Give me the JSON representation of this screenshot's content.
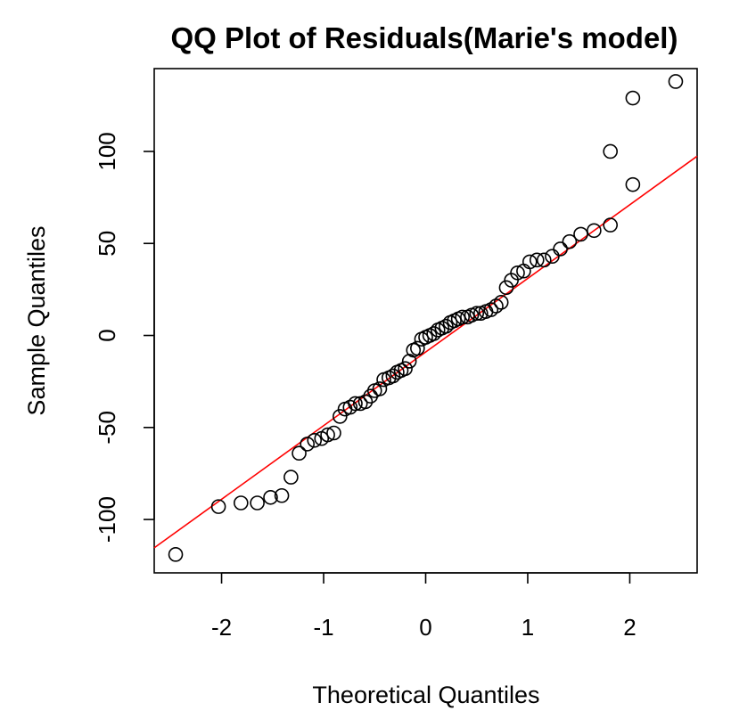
{
  "chart_data": {
    "type": "scatter",
    "title": "QQ Plot of Residuals(Marie's model)",
    "xlabel": "Theoretical Quantiles",
    "ylabel": "Sample Quantiles",
    "xlim": [
      -2.66,
      2.66
    ],
    "ylim": [
      -129,
      145
    ],
    "x_ticks": [
      -2,
      -1,
      0,
      1,
      2
    ],
    "x_tick_labels": [
      "-2",
      "-1",
      "0",
      "1",
      "2"
    ],
    "y_ticks": [
      -100,
      -50,
      0,
      50,
      100
    ],
    "y_tick_labels": [
      "-100",
      "-50",
      "0",
      "50",
      "100"
    ],
    "grid": false,
    "marker": "open-circle",
    "point_color": "#000000",
    "reference_line": {
      "color": "#ff0000",
      "slope": 40.0,
      "intercept": -9.0
    },
    "points": [
      {
        "x": -2.45,
        "y": -119
      },
      {
        "x": -2.03,
        "y": -93
      },
      {
        "x": -1.81,
        "y": -91
      },
      {
        "x": -1.65,
        "y": -91
      },
      {
        "x": -1.52,
        "y": -88
      },
      {
        "x": -1.41,
        "y": -87
      },
      {
        "x": -1.32,
        "y": -77
      },
      {
        "x": -1.24,
        "y": -64
      },
      {
        "x": -1.16,
        "y": -59
      },
      {
        "x": -1.09,
        "y": -57
      },
      {
        "x": -1.02,
        "y": -56
      },
      {
        "x": -0.96,
        "y": -54
      },
      {
        "x": -0.9,
        "y": -53
      },
      {
        "x": -0.84,
        "y": -44
      },
      {
        "x": -0.79,
        "y": -40
      },
      {
        "x": -0.74,
        "y": -39
      },
      {
        "x": -0.69,
        "y": -37
      },
      {
        "x": -0.64,
        "y": -37
      },
      {
        "x": -0.59,
        "y": -36
      },
      {
        "x": -0.54,
        "y": -33
      },
      {
        "x": -0.5,
        "y": -30
      },
      {
        "x": -0.45,
        "y": -29
      },
      {
        "x": -0.41,
        "y": -24
      },
      {
        "x": -0.36,
        "y": -23
      },
      {
        "x": -0.32,
        "y": -22
      },
      {
        "x": -0.28,
        "y": -20
      },
      {
        "x": -0.24,
        "y": -19
      },
      {
        "x": -0.2,
        "y": -18
      },
      {
        "x": -0.16,
        "y": -14
      },
      {
        "x": -0.12,
        "y": -8
      },
      {
        "x": -0.08,
        "y": -7
      },
      {
        "x": -0.04,
        "y": -2
      },
      {
        "x": 0.0,
        "y": -1
      },
      {
        "x": 0.04,
        "y": 0
      },
      {
        "x": 0.08,
        "y": 1
      },
      {
        "x": 0.12,
        "y": 3
      },
      {
        "x": 0.16,
        "y": 4
      },
      {
        "x": 0.2,
        "y": 5
      },
      {
        "x": 0.24,
        "y": 7
      },
      {
        "x": 0.28,
        "y": 8
      },
      {
        "x": 0.32,
        "y": 9
      },
      {
        "x": 0.36,
        "y": 10
      },
      {
        "x": 0.41,
        "y": 10
      },
      {
        "x": 0.45,
        "y": 11
      },
      {
        "x": 0.5,
        "y": 12
      },
      {
        "x": 0.54,
        "y": 12
      },
      {
        "x": 0.59,
        "y": 13
      },
      {
        "x": 0.64,
        "y": 14
      },
      {
        "x": 0.69,
        "y": 16
      },
      {
        "x": 0.74,
        "y": 18
      },
      {
        "x": 0.79,
        "y": 26
      },
      {
        "x": 0.84,
        "y": 30
      },
      {
        "x": 0.9,
        "y": 34
      },
      {
        "x": 0.96,
        "y": 35
      },
      {
        "x": 1.02,
        "y": 40
      },
      {
        "x": 1.09,
        "y": 41
      },
      {
        "x": 1.16,
        "y": 41
      },
      {
        "x": 1.24,
        "y": 43
      },
      {
        "x": 1.32,
        "y": 47
      },
      {
        "x": 1.41,
        "y": 51
      },
      {
        "x": 1.52,
        "y": 55
      },
      {
        "x": 1.65,
        "y": 57
      },
      {
        "x": 1.81,
        "y": 60
      },
      {
        "x": 2.03,
        "y": 82
      },
      {
        "x": 1.81,
        "y": 100
      },
      {
        "x": 2.03,
        "y": 129
      },
      {
        "x": 2.45,
        "y": 138
      }
    ]
  }
}
